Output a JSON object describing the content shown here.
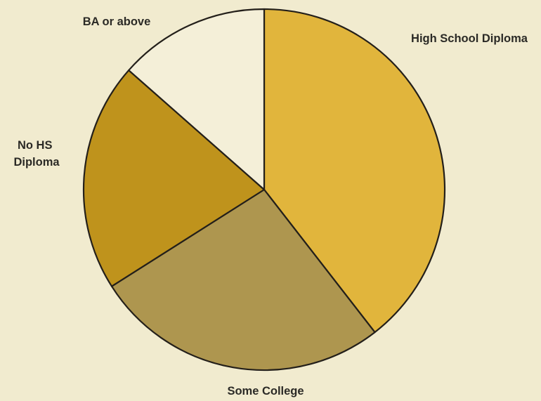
{
  "chart_data": {
    "type": "pie",
    "start_angle_deg": 0,
    "direction": "clockwise",
    "slices": [
      {
        "label": "High School Diploma",
        "value": 39.5,
        "color": "#e1b53c"
      },
      {
        "label": "Some College",
        "value": 26.5,
        "color": "#ae964f"
      },
      {
        "label": "No HS Diploma",
        "value": 20.5,
        "color": "#bf931c"
      },
      {
        "label": "BA or above",
        "value": 13.5,
        "color": "#f4efd8"
      }
    ]
  }
}
